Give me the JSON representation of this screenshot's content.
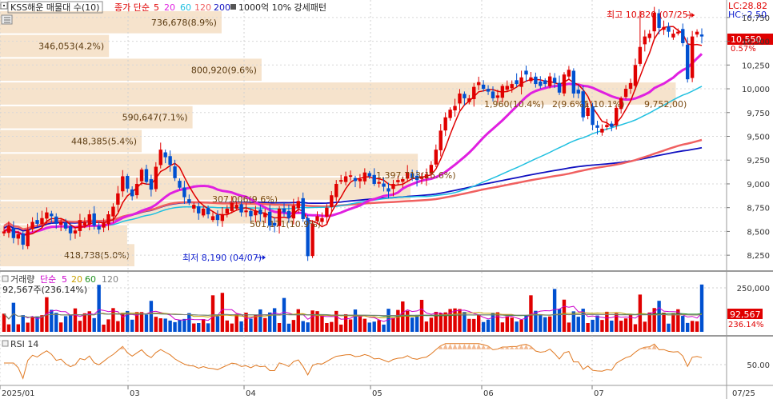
{
  "header": {
    "title": "KSS해운 매물대 수(10)",
    "ma_prefix": "종가 단순",
    "ma_periods": [
      "5",
      "20",
      "60",
      "120",
      "200"
    ],
    "ma_colors": [
      "#e00000",
      "#e020e0",
      "#20c0e0",
      "#f06060",
      "#1010c0"
    ],
    "overlay_label": "1000억 10% 강세패턴"
  },
  "badges": {
    "lc": "LC:28.82",
    "hc": "HC:-2.50"
  },
  "price_panel": {
    "current_price": "10,550",
    "current_change": "0.57%",
    "high_annotation": "최고 10,820 (07/25)",
    "low_annotation": "최저 8,190 (04/07)",
    "overlay_texts": [
      "1,960(10.4%)",
      "2(9.6%)",
      "1(10.1%)",
      "9,752,00)",
      "1,397,713(15.6%)",
      "307,006(9.6%)",
      "501,171(10.9%)"
    ],
    "volume_profile": [
      {
        "label": "736,678(8.9%)",
        "price": 10700,
        "width": 0.305
      },
      {
        "label": "346,053(4.2%)",
        "price": 10450,
        "width": 0.15
      },
      {
        "label": "800,920(9.6%)",
        "price": 10200,
        "width": 0.36
      },
      {
        "label": "",
        "price": 9950,
        "width": 0.93
      },
      {
        "label": "590,647(7.1%)",
        "price": 9700,
        "width": 0.265
      },
      {
        "label": "448,385(5.4%)",
        "price": 9450,
        "width": 0.195
      },
      {
        "label": "",
        "price": 9200,
        "width": 0.575
      },
      {
        "label": "",
        "price": 8950,
        "width": 0.565
      },
      {
        "label": "",
        "price": 8700,
        "width": 0.405
      },
      {
        "label": "",
        "price": 8450,
        "width": 0.175
      },
      {
        "label": "418,738(5.0%)",
        "price": 8250,
        "width": 0.185
      }
    ]
  },
  "volume_panel": {
    "title": "거래량",
    "ma_prefix": "단순",
    "ma_periods": [
      "5",
      "20",
      "60",
      "120"
    ],
    "ma_colors": [
      "#cc00cc",
      "#c8a000",
      "#209020",
      "#808080"
    ],
    "current_value": "92,567주(236.14%)",
    "badge_value": "92,567",
    "badge_pct": "236.14%"
  },
  "rsi_panel": {
    "title": "RSI 14"
  },
  "chart_data": [
    {
      "type": "candlestick",
      "title": "KSS해운 매물대 수(10)",
      "x_labels": [
        "2025/01",
        "03",
        "04",
        "05",
        "06",
        "07",
        "07/25"
      ],
      "y_ticks": [
        "10,750",
        "10,500",
        "10,250",
        "10,000",
        "9,750",
        "9,500",
        "9,250",
        "9,000",
        "8,750",
        "8,500",
        "8,250"
      ],
      "ylim": [
        8100,
        10900
      ],
      "high": {
        "value": 10820,
        "date": "07/25"
      },
      "low": {
        "value": 8190,
        "date": "04/07"
      },
      "last": 10550,
      "close_estimates": [
        8500,
        8560,
        8430,
        8470,
        8360,
        8520,
        8600,
        8580,
        8640,
        8700,
        8660,
        8580,
        8600,
        8530,
        8480,
        8510,
        8620,
        8600,
        8680,
        8560,
        8520,
        8590,
        8680,
        8760,
        8900,
        9080,
        8950,
        8870,
        9000,
        9150,
        9020,
        8940,
        9180,
        9360,
        9280,
        9200,
        9060,
        8960,
        8860,
        8800,
        8780,
        8690,
        8740,
        8680,
        8660,
        8620,
        8680,
        8740,
        8800,
        8780,
        8700,
        8720,
        8660,
        8720,
        8680,
        8690,
        8560,
        8560,
        8740,
        8700,
        8640,
        8770,
        8820,
        8630,
        8240,
        8580,
        8660,
        8640,
        8750,
        8880,
        9000,
        9040,
        9080,
        9090,
        9030,
        9050,
        9120,
        9080,
        9000,
        9020,
        8970,
        8920,
        9000,
        9040,
        9050,
        9120,
        9060,
        9040,
        9080,
        9100,
        9200,
        9360,
        9560,
        9700,
        9780,
        9820,
        9950,
        9900,
        9900,
        10020,
        10070,
        10000,
        9970,
        9900,
        9930,
        10030,
        10030,
        10050,
        10050,
        10120,
        10150,
        10120,
        10050,
        10030,
        10050,
        10130,
        10060,
        9960,
        10150,
        10200,
        9950,
        9950,
        9700,
        9800,
        9620,
        9590,
        9580,
        9620,
        9600,
        9800,
        9900,
        10000,
        10060,
        10250,
        10440,
        10550,
        10580,
        10800,
        10640,
        10650,
        10600,
        10580,
        10600,
        10480,
        10100,
        10550,
        10600,
        10550
      ]
    },
    {
      "type": "bar",
      "title": "거래량",
      "y_ticks": [
        "250,000"
      ],
      "last": 92567,
      "last_pct": 236.14
    },
    {
      "type": "line",
      "title": "RSI 14",
      "y_ticks": [
        "50.00"
      ],
      "ylim": [
        20,
        80
      ]
    }
  ]
}
